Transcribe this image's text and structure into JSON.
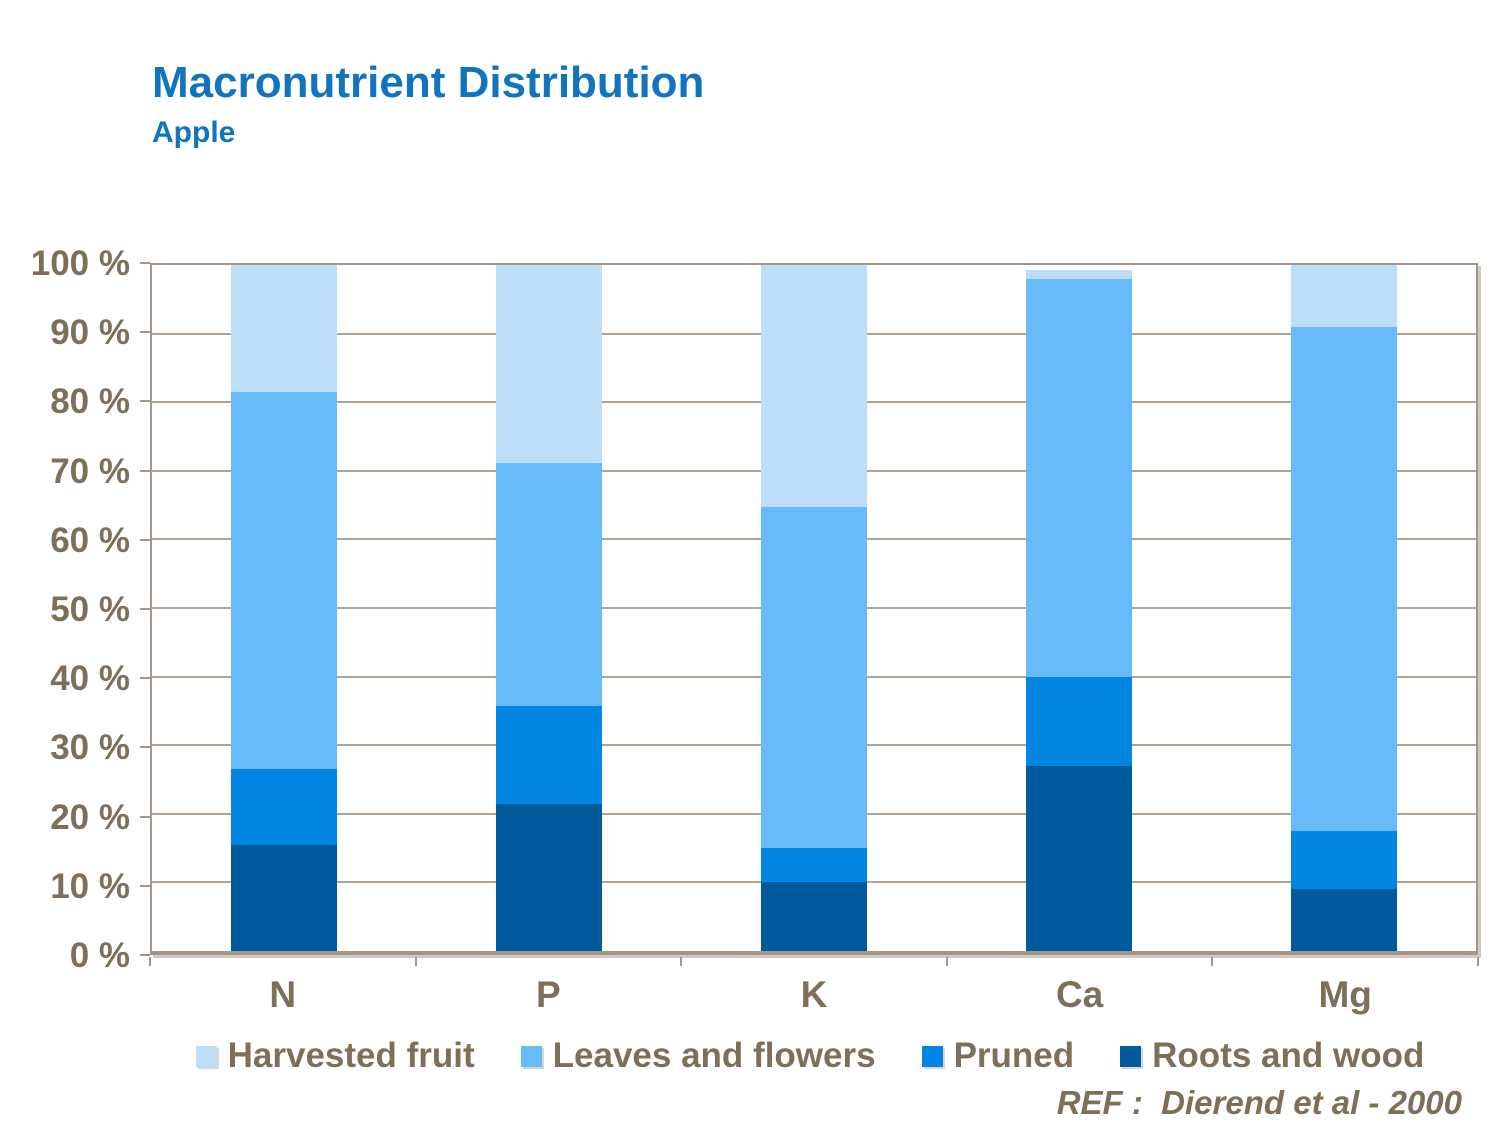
{
  "page": {
    "title": "Macronutrient Distribution",
    "subtitle": "Apple",
    "reference": "REF :  Dierend et al - 2000"
  },
  "colors": {
    "title_blue": "#1273BE",
    "text_taupe": "#7E6F5A",
    "gridline": "#B0A496",
    "plot_border": "#A2968A"
  },
  "chart_data": {
    "type": "bar",
    "stacked": true,
    "title": "Macronutrient Distribution",
    "subtitle": "Apple",
    "categories": [
      "N",
      "P",
      "K",
      "Ca",
      "Mg"
    ],
    "series": [
      {
        "name": "Roots and wood",
        "color": "#005A9B",
        "values": [
          15.5,
          21.5,
          10.0,
          27.0,
          9.0
        ]
      },
      {
        "name": "Pruned",
        "color": "#0286E4",
        "values": [
          11.0,
          14.2,
          5.0,
          13.0,
          8.5
        ]
      },
      {
        "name": "Leaves and flowers",
        "color": "#66BBF8",
        "values": [
          55.0,
          35.5,
          49.7,
          58.0,
          73.5
        ]
      },
      {
        "name": "Harvested fruit",
        "color": "#BCDEF8",
        "values": [
          18.5,
          28.8,
          35.3,
          1.3,
          9.0
        ]
      }
    ],
    "legend_order": [
      "Harvested fruit",
      "Leaves and flowers",
      "Pruned",
      "Roots and wood"
    ],
    "xlabel": "",
    "ylabel": "",
    "ylim": [
      0,
      100
    ],
    "y_tick_labels": [
      "0 %",
      "10 %",
      "20 %",
      "30 %",
      "40 %",
      "50 %",
      "60 %",
      "70 %",
      "80 %",
      "90 %",
      "100 %"
    ],
    "grid": true,
    "legend_position": "bottom"
  }
}
